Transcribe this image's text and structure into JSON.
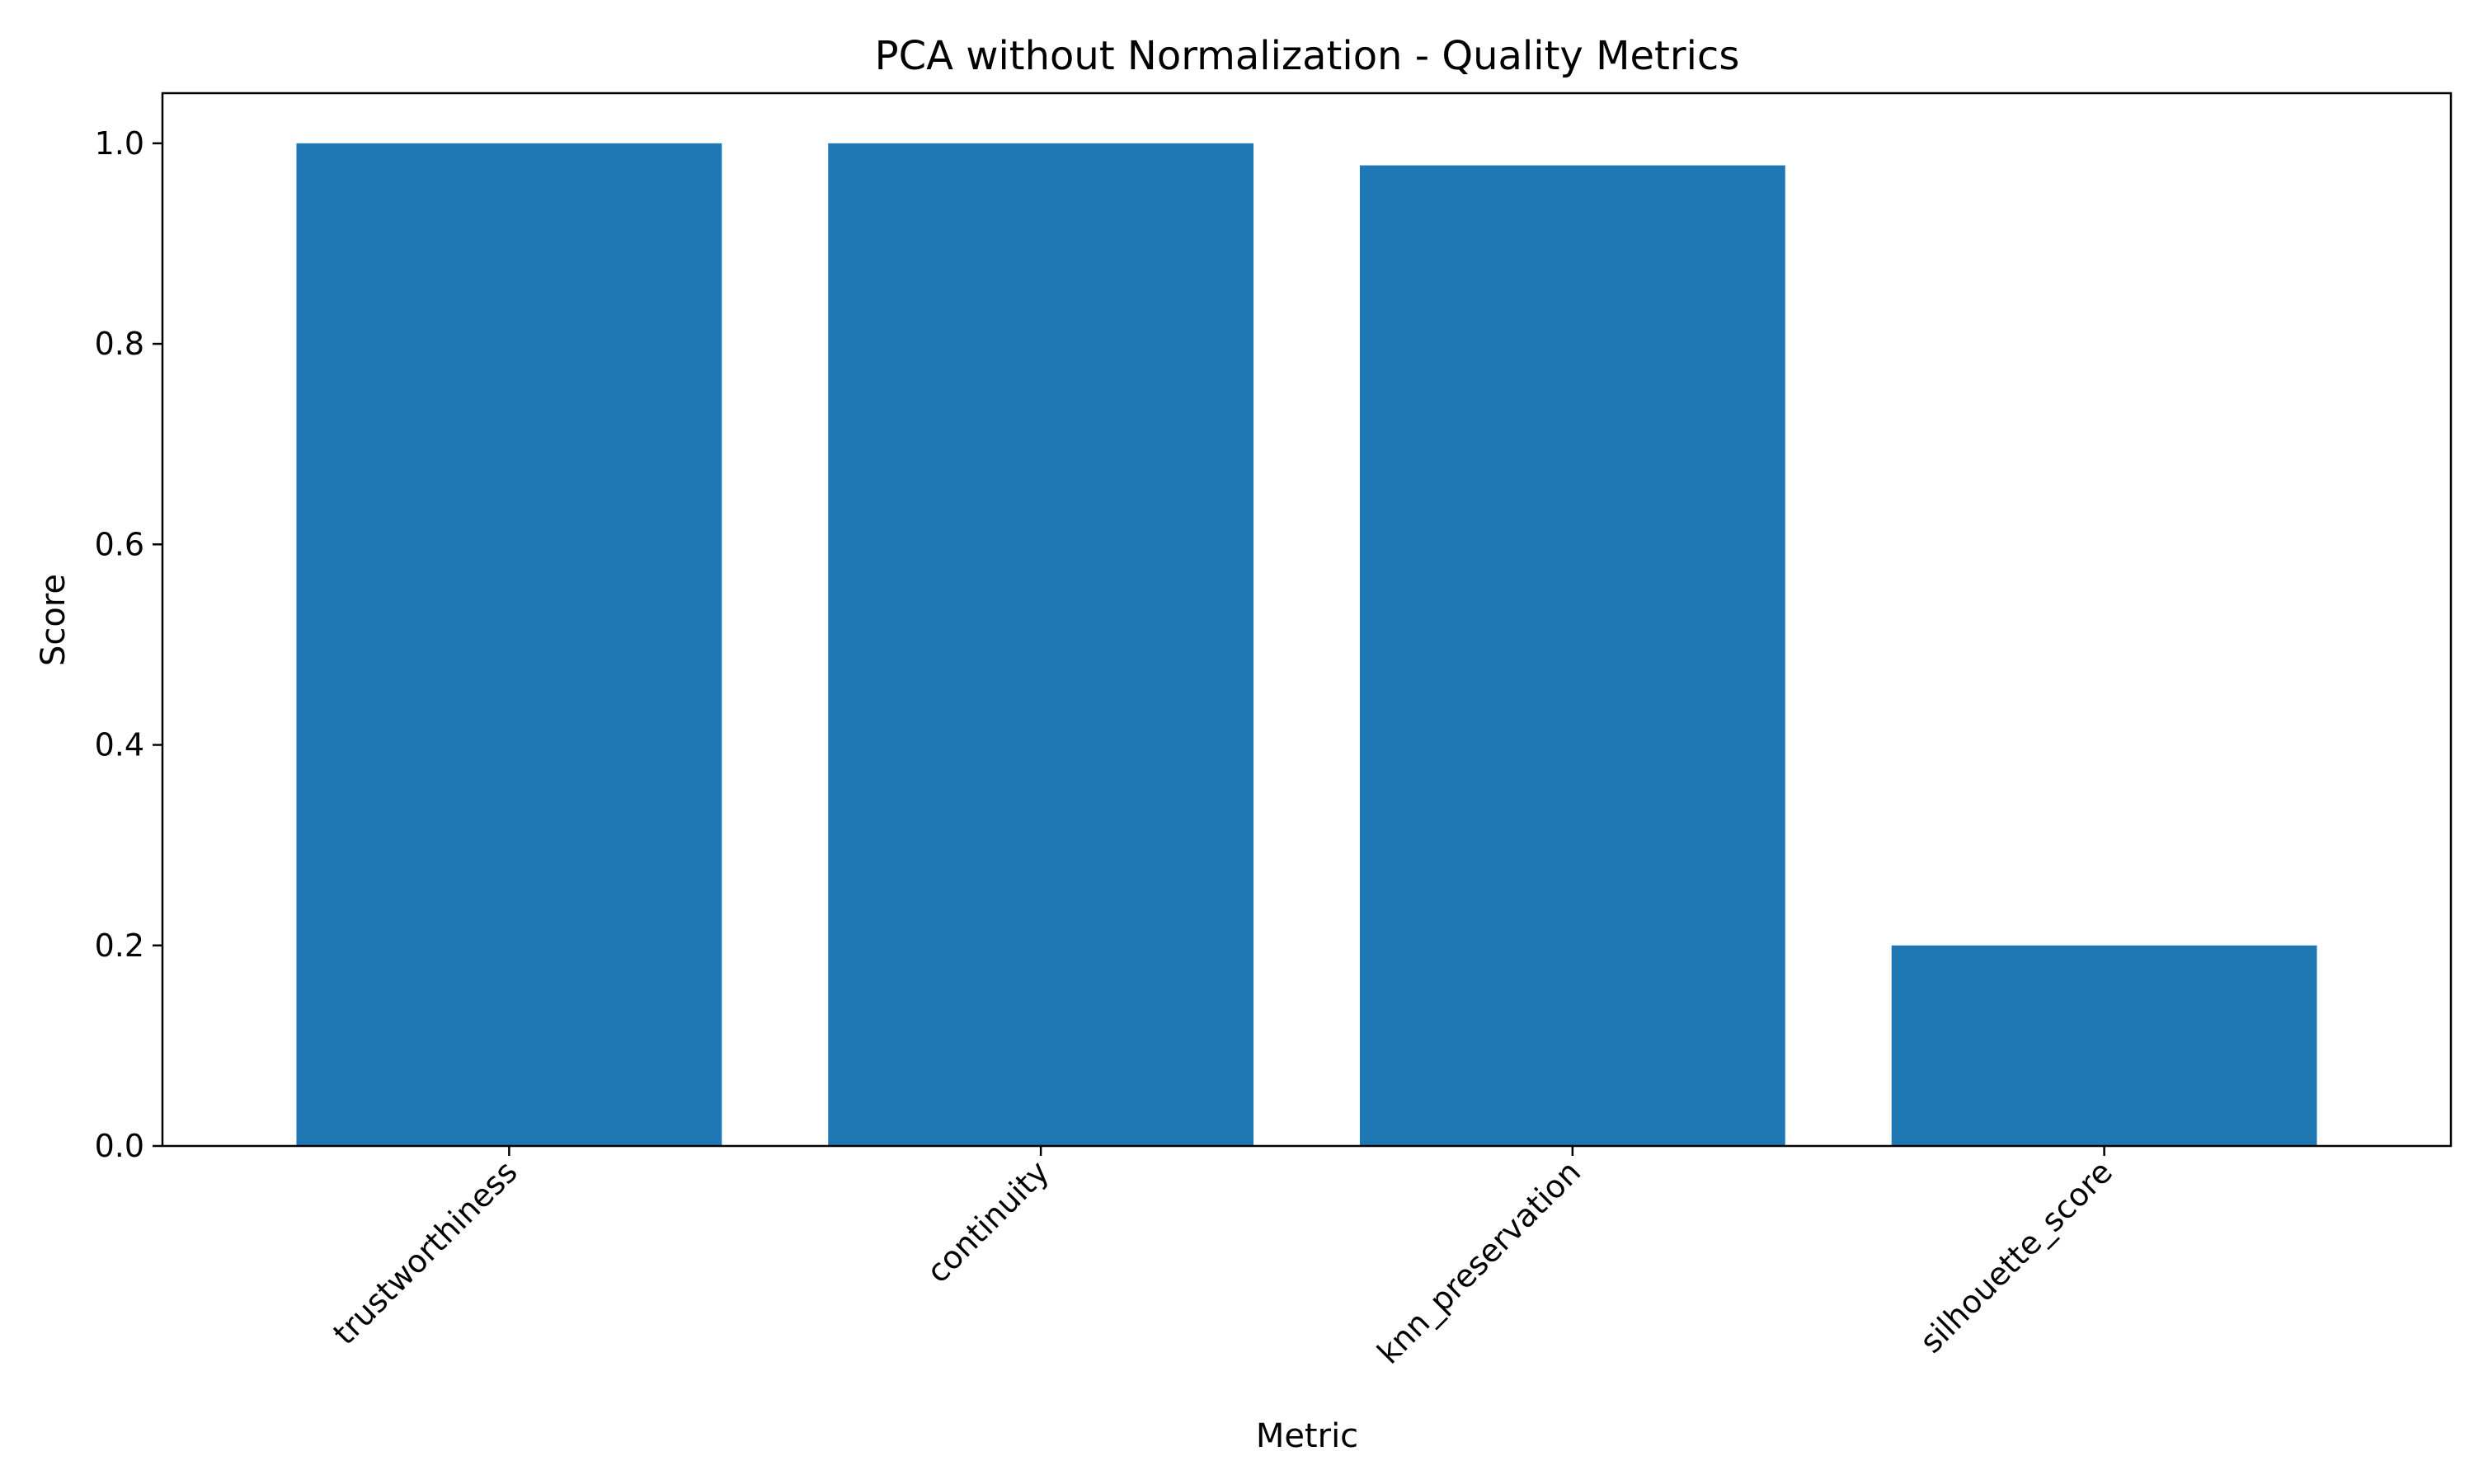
{
  "chart_data": {
    "type": "bar",
    "title": "PCA without Normalization - Quality Metrics",
    "xlabel": "Metric",
    "ylabel": "Score",
    "categories": [
      "trustworthiness",
      "continuity",
      "knn_preservation",
      "silhouette_score"
    ],
    "values": [
      1.0,
      1.0,
      0.978,
      0.2
    ],
    "ylim": [
      0,
      1.05
    ],
    "yticks": [
      "0.0",
      "0.2",
      "0.4",
      "0.6",
      "0.8",
      "1.0"
    ],
    "xtick_rotation_deg": 45,
    "grid": false,
    "legend": "none",
    "bar_color": "#1f77b4"
  }
}
